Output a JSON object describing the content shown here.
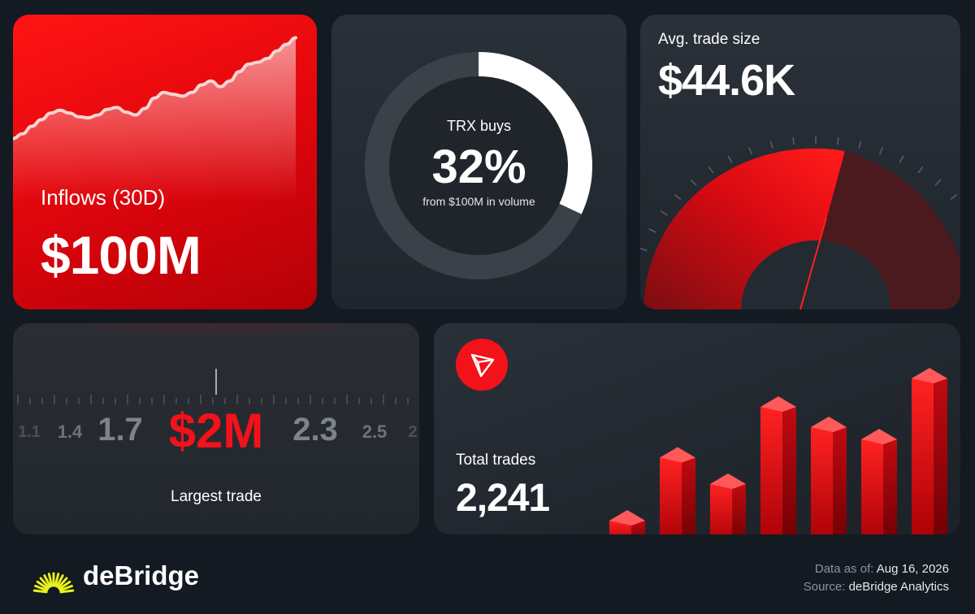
{
  "colors": {
    "accent": "#f3111a",
    "background": "#141a22",
    "card": "#262c33"
  },
  "inflows": {
    "label": "Inflows (30D)",
    "value": "$100M"
  },
  "trx": {
    "label": "TRX buys",
    "value": "32%",
    "sub": "from $100M in volume",
    "percent": 32
  },
  "avg_trade": {
    "label": "Avg. trade size",
    "value": "$44.6K"
  },
  "largest_trade": {
    "label": "Largest trade",
    "value": "$2M",
    "scale_left": [
      "1.1",
      "1.4",
      "1.7"
    ],
    "scale_right": [
      "2.3",
      "2.5",
      "2"
    ]
  },
  "total_trades": {
    "label": "Total trades",
    "value": "2,241",
    "icon": "tron-icon"
  },
  "brand": {
    "name": "deBridge",
    "icon": "debridge-sunburst-icon"
  },
  "footer": {
    "date_label": "Data as of:",
    "date_value": "Aug 16, 2026",
    "source_label": "Source:",
    "source_value": "deBridge Analytics"
  },
  "chart_data": [
    {
      "type": "area",
      "title": "Inflows (30D)",
      "x": [
        0,
        1,
        2,
        3,
        4,
        5,
        6,
        7,
        8,
        9,
        10,
        11,
        12,
        13,
        14,
        15,
        16,
        17,
        18,
        19,
        20,
        21,
        22,
        23,
        24,
        25,
        26,
        27,
        28,
        29,
        30
      ],
      "y": [
        15,
        20,
        28,
        35,
        42,
        45,
        42,
        38,
        37,
        40,
        46,
        48,
        43,
        40,
        47,
        58,
        64,
        62,
        60,
        64,
        72,
        76,
        70,
        76,
        86,
        94,
        96,
        100,
        108,
        115,
        122
      ]
    },
    {
      "type": "pie",
      "title": "TRX buys",
      "slices": [
        {
          "label": "TRX buys",
          "value": 32
        },
        {
          "label": "other",
          "value": 68
        }
      ]
    },
    {
      "type": "bar",
      "title": "Total trades",
      "values": [
        12,
        43,
        30,
        68,
        58,
        52,
        82
      ],
      "ylim": [
        0,
        100
      ]
    }
  ]
}
